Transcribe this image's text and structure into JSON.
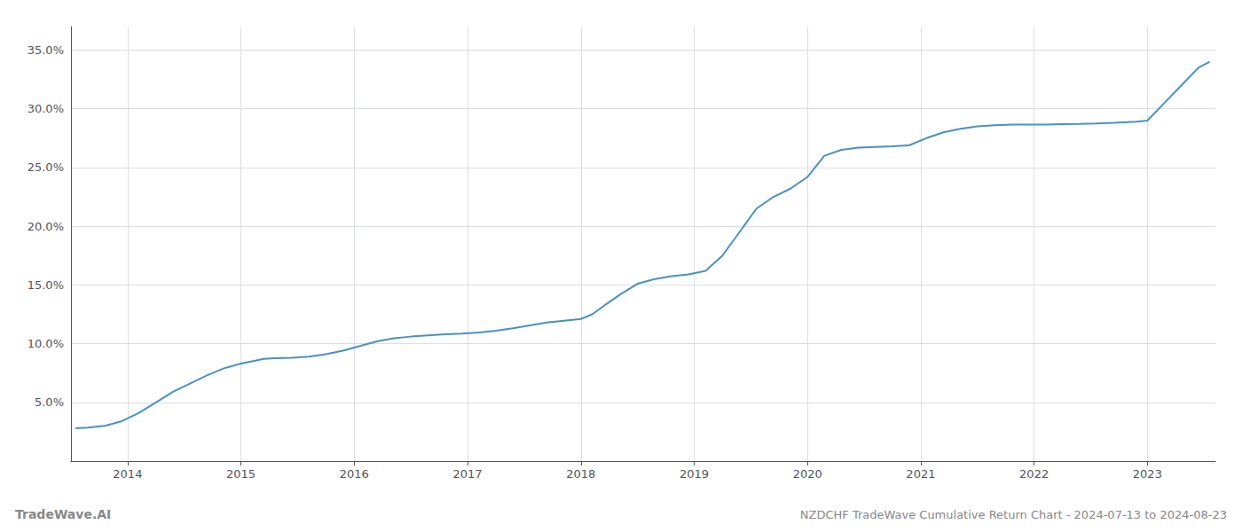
{
  "chart_data": {
    "type": "line",
    "title": "NZDCHF TradeWave Cumulative Return Chart - 2024-07-13 to 2024-08-23",
    "annotations": [
      "TradeWave.AI"
    ],
    "color": "#4a90c4",
    "grid": true,
    "x": [
      2013.54,
      2013.65,
      2013.8,
      2013.95,
      2014.1,
      2014.25,
      2014.4,
      2014.55,
      2014.7,
      2014.85,
      2015.0,
      2015.1,
      2015.2,
      2015.3,
      2015.45,
      2015.6,
      2015.75,
      2015.9,
      2016.05,
      2016.2,
      2016.35,
      2016.5,
      2016.65,
      2016.8,
      2016.95,
      2017.1,
      2017.25,
      2017.4,
      2017.55,
      2017.7,
      2017.85,
      2018.0,
      2018.1,
      2018.2,
      2018.35,
      2018.5,
      2018.65,
      2018.8,
      2018.95,
      2019.1,
      2019.25,
      2019.4,
      2019.55,
      2019.7,
      2019.85,
      2020.0,
      2020.15,
      2020.3,
      2020.45,
      2020.6,
      2020.75,
      2020.9,
      2021.05,
      2021.2,
      2021.35,
      2021.5,
      2021.65,
      2021.8,
      2021.95,
      2022.1,
      2022.25,
      2022.4,
      2022.55,
      2022.7,
      2022.8,
      2022.9,
      2023.0,
      2023.15,
      2023.3,
      2023.45,
      2023.55
    ],
    "values": [
      2.8,
      2.85,
      3.0,
      3.4,
      4.1,
      5.0,
      5.9,
      6.6,
      7.3,
      7.9,
      8.3,
      8.5,
      8.7,
      8.75,
      8.8,
      8.9,
      9.1,
      9.4,
      9.8,
      10.2,
      10.45,
      10.6,
      10.7,
      10.8,
      10.85,
      10.95,
      11.1,
      11.3,
      11.55,
      11.8,
      11.95,
      12.1,
      12.5,
      13.2,
      14.2,
      15.1,
      15.5,
      15.75,
      15.9,
      16.2,
      17.5,
      19.5,
      21.5,
      22.5,
      23.2,
      24.2,
      26.0,
      26.5,
      26.7,
      26.75,
      26.8,
      26.9,
      27.5,
      28.0,
      28.3,
      28.5,
      28.6,
      28.65,
      28.65,
      28.65,
      28.7,
      28.72,
      28.75,
      28.8,
      28.85,
      28.9,
      29.0,
      30.5,
      32.0,
      33.5,
      34.0
    ],
    "xlim": [
      2013.5,
      2023.6
    ],
    "ylim": [
      0.0,
      37.0
    ],
    "xticks": [
      2014,
      2015,
      2016,
      2017,
      2018,
      2019,
      2020,
      2021,
      2022,
      2023
    ],
    "yticks": [
      {
        "value": 5.0,
        "label": "5.0%"
      },
      {
        "value": 10.0,
        "label": "10.0%"
      },
      {
        "value": 15.0,
        "label": "15.0%"
      },
      {
        "value": 20.0,
        "label": "20.0%"
      },
      {
        "value": 25.0,
        "label": "25.0%"
      },
      {
        "value": 30.0,
        "label": "30.0%"
      },
      {
        "value": 35.0,
        "label": "35.0%"
      }
    ]
  }
}
